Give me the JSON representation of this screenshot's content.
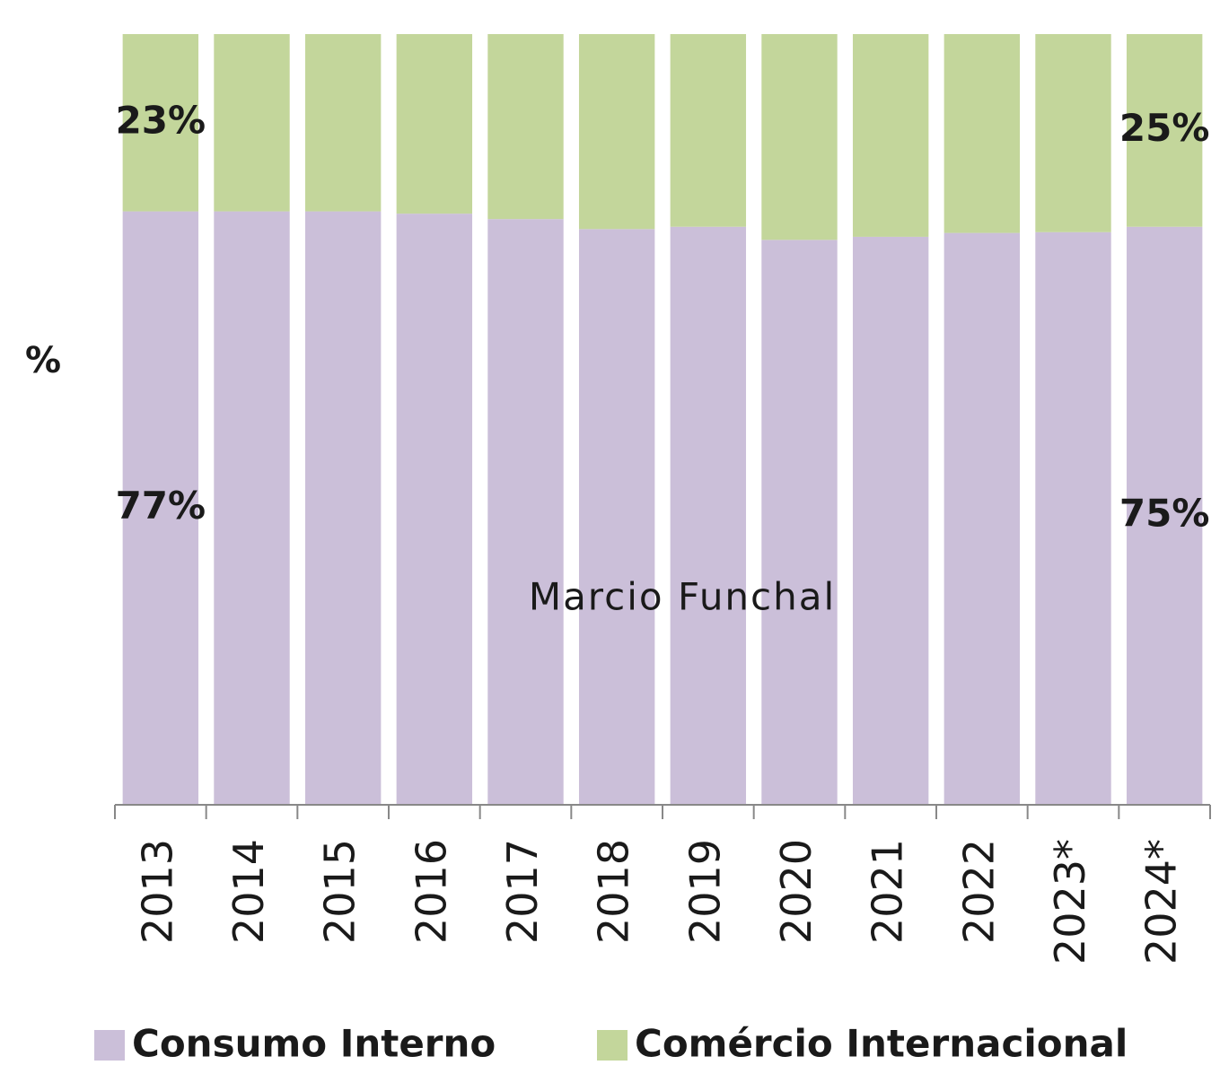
{
  "chart_data": {
    "type": "stacked_bar_100",
    "y_label": "%",
    "watermark": "Marcio Funchal",
    "categories": [
      "2013",
      "2014",
      "2015",
      "2016",
      "2017",
      "2018",
      "2019",
      "2020",
      "2021",
      "2022",
      "2023*",
      "2024*"
    ],
    "series": [
      {
        "name": "Consumo Interno",
        "color": "#cbbfd9",
        "values": [
          77,
          77,
          77,
          76.7,
          76,
          74.7,
          75,
          73.3,
          73.7,
          74.2,
          74.3,
          75
        ],
        "value_labels": [
          "77%",
          null,
          null,
          null,
          null,
          null,
          null,
          null,
          null,
          null,
          null,
          "75%"
        ]
      },
      {
        "name": "Comércio Internacional",
        "color": "#c3d69b",
        "values": [
          23,
          23,
          23,
          23.3,
          24,
          25.3,
          25,
          26.7,
          26.3,
          25.8,
          25.7,
          25
        ],
        "value_labels": [
          "23%",
          null,
          null,
          null,
          null,
          null,
          null,
          null,
          null,
          null,
          null,
          "25%"
        ]
      }
    ],
    "ylim": [
      0,
      100
    ],
    "legend": "bottom"
  }
}
